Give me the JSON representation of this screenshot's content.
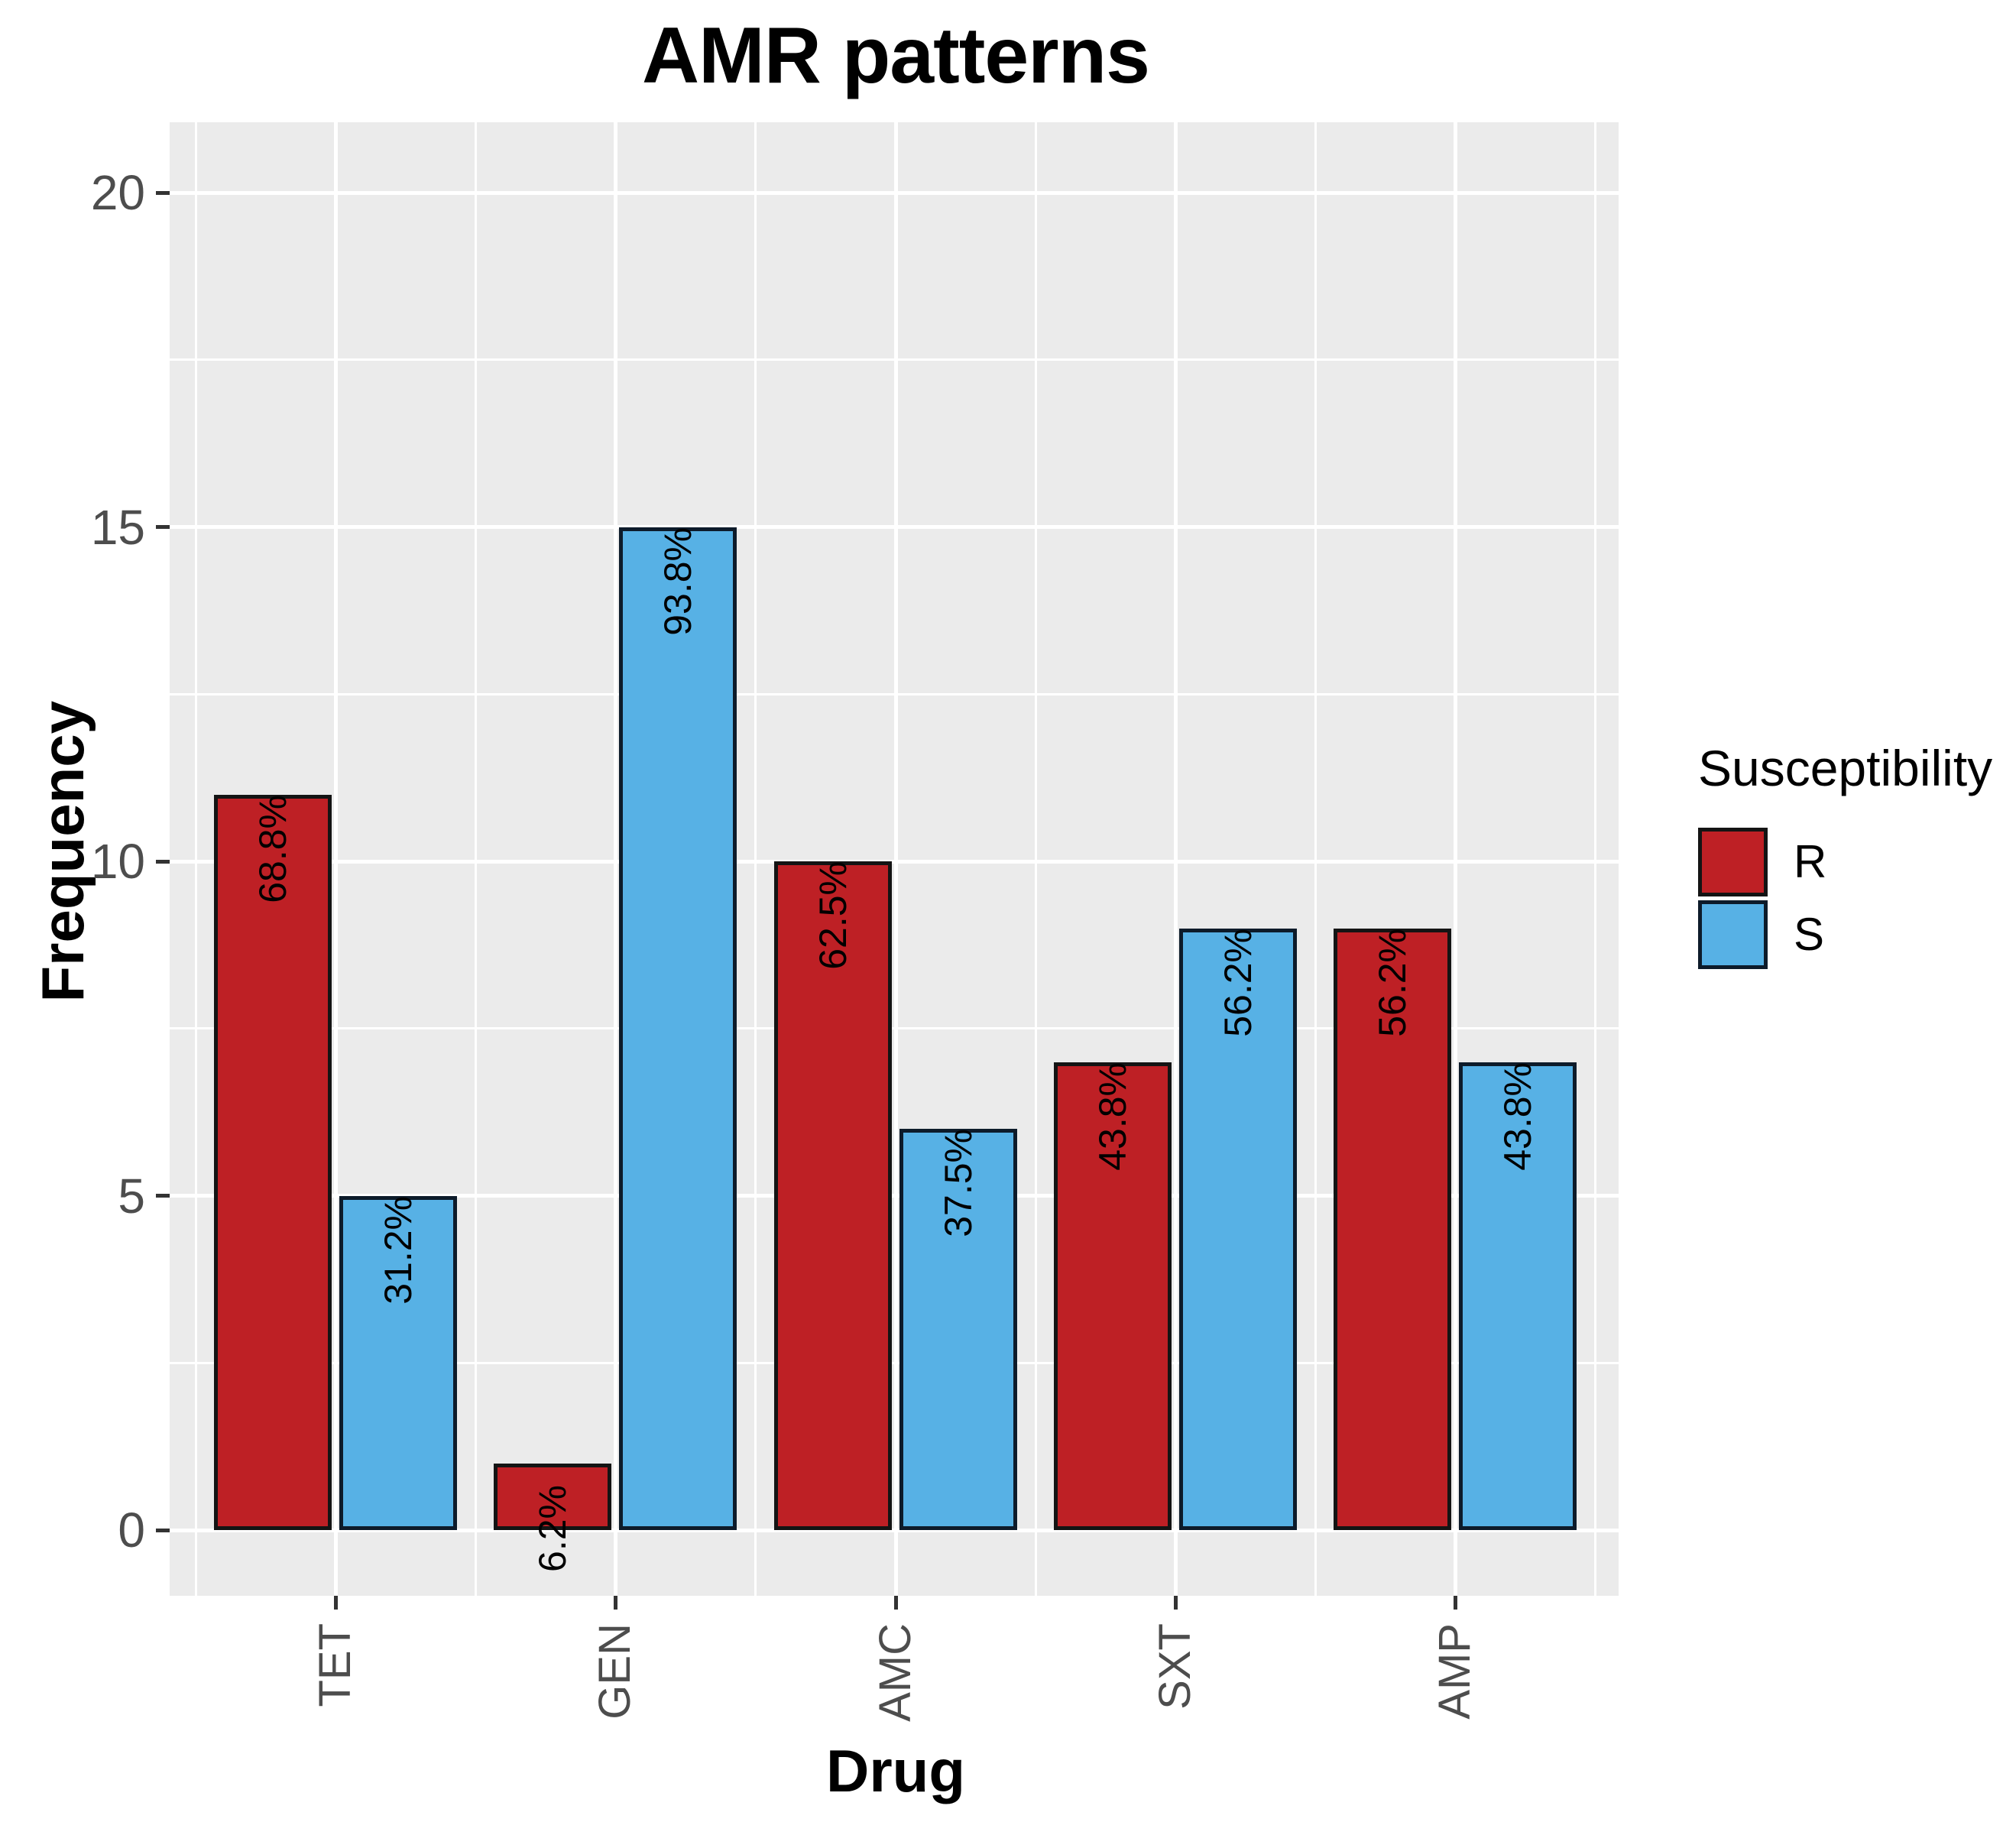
{
  "title": "AMR patterns",
  "chart_data": {
    "type": "bar",
    "title": "AMR patterns",
    "xlabel": "Drug",
    "ylabel": "Frequency",
    "categories": [
      "TET",
      "GEN",
      "AMC",
      "SXT",
      "AMP"
    ],
    "series": [
      {
        "name": "R",
        "color": "#BE2025",
        "border_color": "#141414",
        "values": [
          11,
          1,
          10,
          7,
          9
        ],
        "bar_labels": [
          "68.8%",
          "6.2%",
          "62.5%",
          "43.8%",
          "56.2%"
        ]
      },
      {
        "name": "S",
        "color": "#57B1E5",
        "border_color": "#0D1B2A",
        "values": [
          5,
          15,
          6,
          9,
          7
        ],
        "bar_labels": [
          "31.2%",
          "93.8%",
          "37.5%",
          "56.2%",
          "43.8%"
        ]
      }
    ],
    "ylim": [
      0,
      20
    ],
    "yticks": [
      0,
      5,
      10,
      15,
      20
    ],
    "ytick_labels": [
      "0",
      "5",
      "10",
      "15",
      "20"
    ],
    "grid": true,
    "legend_title": "Susceptibility",
    "legend_position": "right",
    "colors": {
      "panel_background": "#EBEBEB",
      "gridline": "#FFFFFF",
      "axis_text": "#4D4D4D",
      "tick_mark": "#333333",
      "title_text": "#000000"
    }
  }
}
